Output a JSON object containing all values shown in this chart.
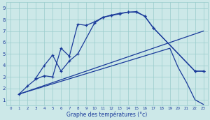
{
  "line1": {
    "x": [
      1,
      2,
      3,
      4,
      5,
      6,
      7,
      8,
      9,
      10,
      11,
      12,
      13,
      14,
      15,
      16,
      17,
      22,
      23
    ],
    "y": [
      1.5,
      2.2,
      2.8,
      3.1,
      3.0,
      5.5,
      4.8,
      7.6,
      7.5,
      7.8,
      8.2,
      8.4,
      8.55,
      8.65,
      8.7,
      8.3,
      7.3,
      3.5,
      3.5
    ],
    "markers": true
  },
  "line2": {
    "x": [
      3,
      4,
      5,
      6,
      7,
      8,
      10,
      11,
      12,
      13,
      14,
      15,
      16,
      17,
      22,
      23
    ],
    "y": [
      2.9,
      4.0,
      4.9,
      3.5,
      4.4,
      5.0,
      7.7,
      8.2,
      8.35,
      8.5,
      8.65,
      8.65,
      8.3,
      7.3,
      3.5,
      3.5
    ],
    "markers": true
  },
  "line3": {
    "x": [
      1,
      23
    ],
    "y": [
      1.5,
      7.0
    ],
    "markers": false
  },
  "line4": {
    "x": [
      1,
      19,
      20,
      21,
      22,
      23
    ],
    "y": [
      1.5,
      5.5,
      3.8,
      2.5,
      1.0,
      0.6
    ],
    "markers": false
  },
  "bg_color": "#cce8e8",
  "grid_color": "#99cccc",
  "line_color": "#1a3a9a",
  "xlabel": "Graphe des températures (°c)",
  "xlim": [
    -0.5,
    23.5
  ],
  "ylim": [
    0.5,
    9.5
  ],
  "xticks": [
    0,
    1,
    2,
    3,
    4,
    5,
    6,
    7,
    8,
    9,
    10,
    11,
    12,
    13,
    14,
    15,
    16,
    17,
    18,
    19,
    20,
    21,
    22,
    23
  ],
  "yticks": [
    1,
    2,
    3,
    4,
    5,
    6,
    7,
    8,
    9
  ]
}
